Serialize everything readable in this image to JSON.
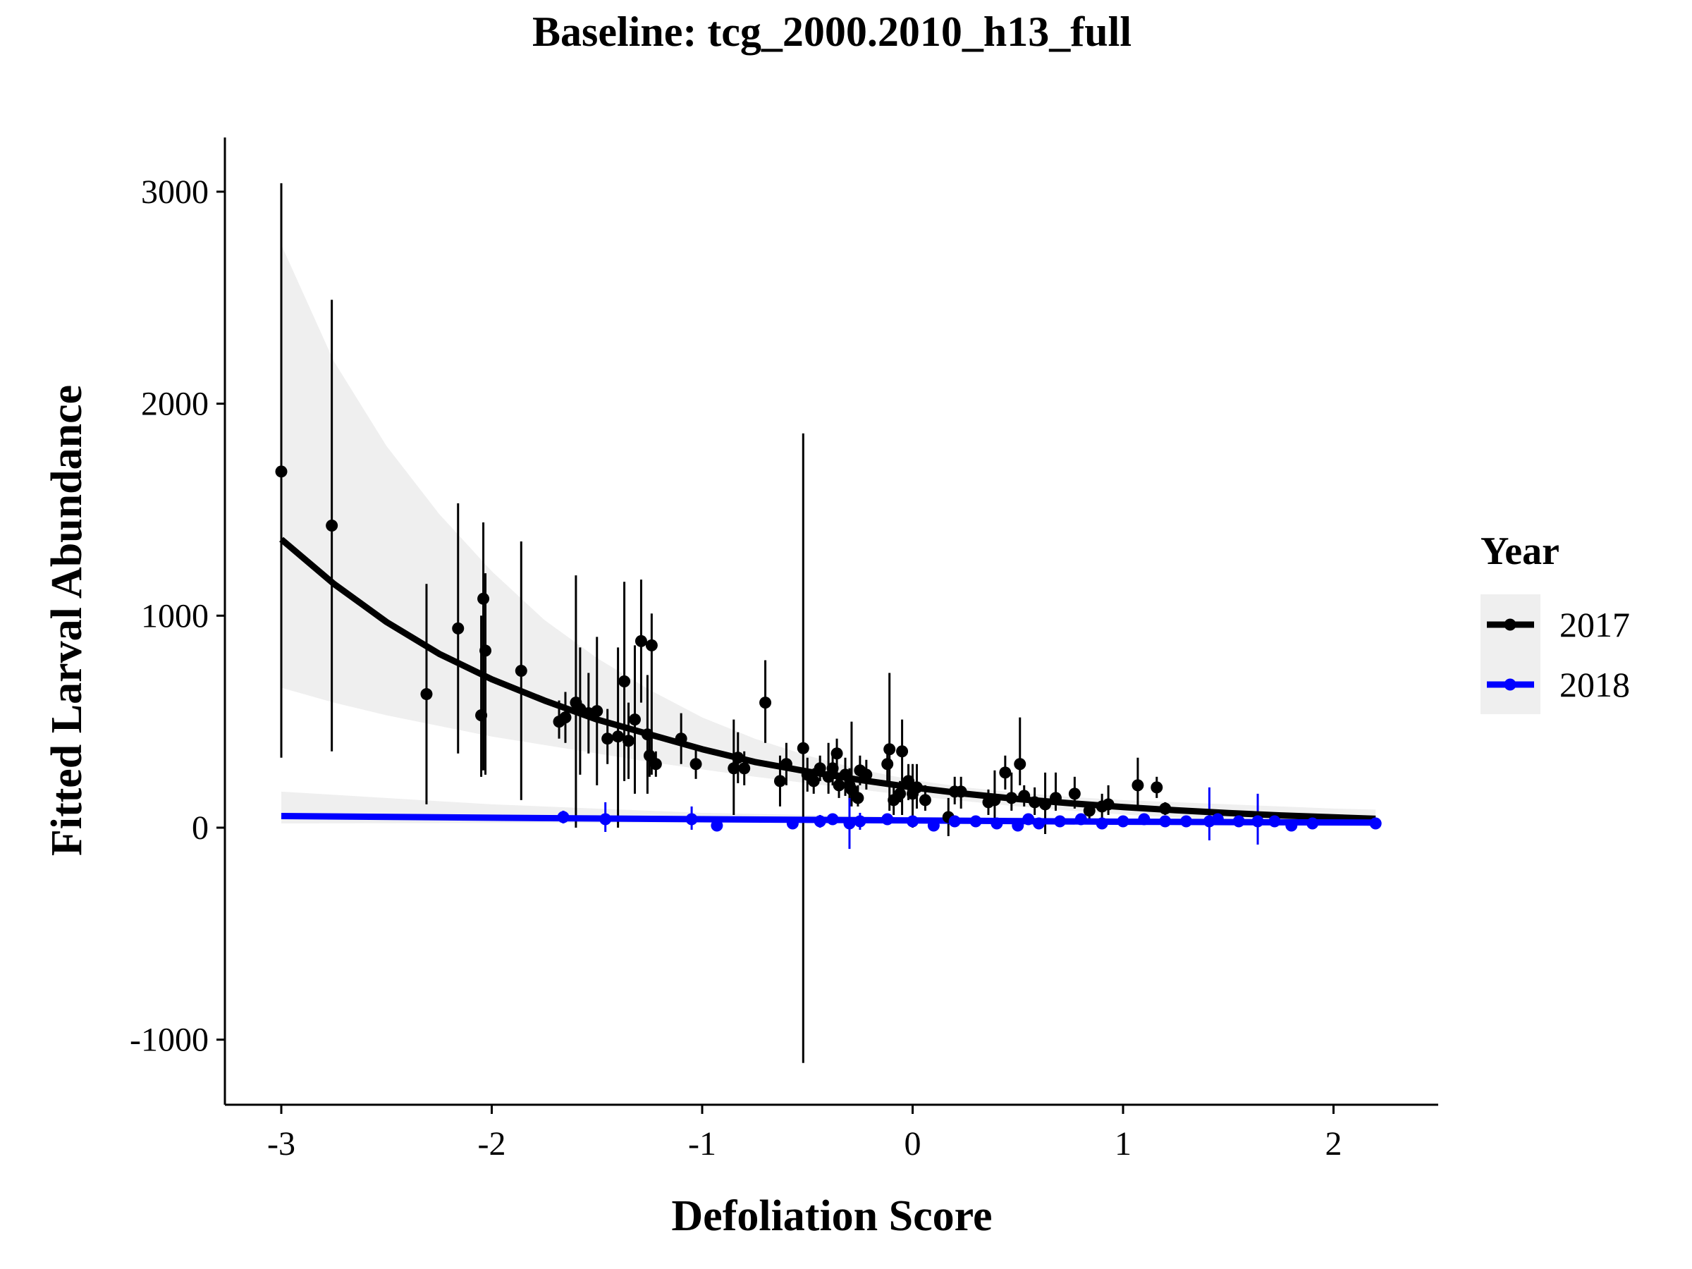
{
  "chart_data": {
    "type": "scatter",
    "title": "Baseline: tcg_2000.2010_h13_full",
    "xlabel": "Defoliation Score",
    "ylabel": "Fitted Larval Abundance",
    "xlim": [
      -3.27,
      2.5
    ],
    "ylim": [
      -1300,
      3250
    ],
    "x_ticks": [
      -3,
      -2,
      -1,
      0,
      1,
      2
    ],
    "x_tick_labels": [
      "-3",
      "-2",
      "-1",
      "0",
      "1",
      "2"
    ],
    "y_ticks": [
      -1000,
      0,
      1000,
      2000,
      3000
    ],
    "y_tick_labels": [
      "-1000",
      "0",
      "1000",
      "2000",
      "3000"
    ],
    "grid": false,
    "legend": {
      "title": "Year",
      "position": "right",
      "entries": [
        "2017",
        "2018"
      ]
    },
    "series": [
      {
        "name": "2017",
        "color": "#000000",
        "ribbon_color": "#efefef",
        "fit": {
          "x": [
            -3.0,
            -2.75,
            -2.5,
            -2.25,
            -2.0,
            -1.75,
            -1.5,
            -1.25,
            -1.0,
            -0.75,
            -0.5,
            -0.25,
            0.0,
            0.25,
            0.5,
            0.75,
            1.0,
            1.25,
            1.5,
            1.75,
            2.0,
            2.2
          ],
          "y": [
            1360,
            1150,
            970,
            820,
            700,
            600,
            510,
            440,
            370,
            310,
            265,
            225,
            190,
            160,
            135,
            115,
            97,
            82,
            69,
            58,
            49,
            42
          ],
          "lower": [
            660,
            590,
            530,
            480,
            430,
            390,
            350,
            310,
            275,
            240,
            210,
            180,
            150,
            125,
            100,
            80,
            62,
            48,
            35,
            25,
            15,
            8
          ],
          "upper": [
            2750,
            2200,
            1800,
            1480,
            1210,
            980,
            800,
            650,
            520,
            420,
            340,
            275,
            225,
            190,
            165,
            145,
            130,
            120,
            110,
            100,
            90,
            85
          ]
        },
        "points": [
          [
            -3.0,
            1680,
            330,
            3040
          ],
          [
            -2.76,
            1425,
            360,
            2490
          ],
          [
            -2.31,
            630,
            110,
            1150
          ],
          [
            -2.16,
            940,
            350,
            1530
          ],
          [
            -2.04,
            1080,
            270,
            1440
          ],
          [
            -2.03,
            835,
            250,
            1200
          ],
          [
            -2.05,
            530,
            240,
            1000
          ],
          [
            -1.86,
            740,
            130,
            1350
          ],
          [
            -1.68,
            500,
            420,
            600
          ],
          [
            -1.65,
            520,
            400,
            640
          ],
          [
            -1.6,
            590,
            0,
            1190
          ],
          [
            -1.58,
            560,
            250,
            850
          ],
          [
            -1.54,
            540,
            350,
            730
          ],
          [
            -1.5,
            550,
            200,
            900
          ],
          [
            -1.45,
            420,
            300,
            560
          ],
          [
            -1.4,
            430,
            0,
            850
          ],
          [
            -1.37,
            690,
            220,
            1160
          ],
          [
            -1.35,
            410,
            230,
            590
          ],
          [
            -1.32,
            510,
            160,
            860
          ],
          [
            -1.29,
            880,
            590,
            1170
          ],
          [
            -1.26,
            440,
            160,
            720
          ],
          [
            -1.25,
            340,
            240,
            440
          ],
          [
            -1.24,
            860,
            250,
            1010
          ],
          [
            -1.22,
            300,
            240,
            360
          ],
          [
            -1.1,
            420,
            300,
            540
          ],
          [
            -1.03,
            300,
            230,
            370
          ],
          [
            -0.85,
            280,
            60,
            510
          ],
          [
            -0.83,
            330,
            210,
            450
          ],
          [
            -0.8,
            280,
            200,
            360
          ],
          [
            -0.7,
            590,
            400,
            790
          ],
          [
            -0.63,
            220,
            100,
            340
          ],
          [
            -0.6,
            300,
            200,
            400
          ],
          [
            -0.52,
            375,
            -1110,
            1860
          ],
          [
            -0.5,
            250,
            170,
            330
          ],
          [
            -0.47,
            220,
            160,
            280
          ],
          [
            -0.44,
            280,
            220,
            340
          ],
          [
            -0.4,
            240,
            160,
            400
          ],
          [
            -0.38,
            280,
            200,
            360
          ],
          [
            -0.36,
            350,
            220,
            420
          ],
          [
            -0.35,
            200,
            140,
            260
          ],
          [
            -0.32,
            250,
            150,
            330
          ],
          [
            -0.3,
            200,
            130,
            280
          ],
          [
            -0.29,
            180,
            100,
            500
          ],
          [
            -0.26,
            140,
            100,
            200
          ],
          [
            -0.25,
            270,
            200,
            340
          ],
          [
            -0.22,
            250,
            180,
            320
          ],
          [
            -0.12,
            300,
            220,
            380
          ],
          [
            -0.11,
            370,
            80,
            730
          ],
          [
            -0.09,
            130,
            60,
            200
          ],
          [
            -0.06,
            160,
            120,
            220
          ],
          [
            -0.05,
            360,
            60,
            510
          ],
          [
            -0.02,
            220,
            130,
            300
          ],
          [
            0.0,
            160,
            0,
            300
          ],
          [
            0.02,
            190,
            90,
            300
          ],
          [
            0.06,
            130,
            80,
            200
          ],
          [
            0.17,
            50,
            -40,
            140
          ],
          [
            0.2,
            170,
            110,
            240
          ],
          [
            0.23,
            170,
            90,
            240
          ],
          [
            0.36,
            120,
            60,
            180
          ],
          [
            0.39,
            130,
            40,
            270
          ],
          [
            0.44,
            260,
            180,
            340
          ],
          [
            0.47,
            140,
            80,
            260
          ],
          [
            0.51,
            300,
            200,
            520
          ],
          [
            0.53,
            150,
            100,
            200
          ],
          [
            0.58,
            120,
            60,
            190
          ],
          [
            0.63,
            110,
            -30,
            260
          ],
          [
            0.68,
            140,
            80,
            260
          ],
          [
            0.77,
            160,
            90,
            240
          ],
          [
            0.84,
            80,
            40,
            120
          ],
          [
            0.9,
            100,
            40,
            160
          ],
          [
            0.93,
            110,
            60,
            200
          ],
          [
            1.07,
            200,
            100,
            330
          ],
          [
            1.16,
            190,
            140,
            240
          ],
          [
            1.2,
            90,
            60,
            120
          ]
        ]
      },
      {
        "name": "2018",
        "color": "#0000ff",
        "ribbon_color": "#efefef",
        "fit": {
          "x": [
            -3.0,
            -2.0,
            -1.0,
            0.0,
            1.0,
            2.2
          ],
          "y": [
            55,
            47,
            40,
            34,
            28,
            24
          ],
          "lower": [
            20,
            22,
            24,
            20,
            14,
            10
          ],
          "upper": [
            170,
            110,
            70,
            50,
            45,
            40
          ]
        },
        "points": [
          [
            -1.66,
            50,
            20,
            80
          ],
          [
            -1.46,
            40,
            -20,
            120
          ],
          [
            -1.05,
            40,
            -10,
            100
          ],
          [
            -0.93,
            10,
            0,
            20
          ],
          [
            -0.57,
            20,
            10,
            30
          ],
          [
            -0.44,
            30,
            0,
            60
          ],
          [
            -0.38,
            40,
            20,
            60
          ],
          [
            -0.3,
            20,
            -100,
            140
          ],
          [
            -0.25,
            30,
            -10,
            70
          ],
          [
            -0.12,
            40,
            20,
            60
          ],
          [
            0.0,
            30,
            10,
            50
          ],
          [
            0.1,
            10,
            0,
            20
          ],
          [
            0.2,
            30,
            20,
            40
          ],
          [
            0.3,
            30,
            10,
            50
          ],
          [
            0.4,
            20,
            10,
            30
          ],
          [
            0.5,
            10,
            0,
            20
          ],
          [
            0.55,
            40,
            20,
            60
          ],
          [
            0.6,
            20,
            10,
            30
          ],
          [
            0.7,
            30,
            10,
            50
          ],
          [
            0.8,
            40,
            20,
            60
          ],
          [
            0.9,
            20,
            10,
            30
          ],
          [
            1.0,
            30,
            10,
            50
          ],
          [
            1.1,
            40,
            20,
            60
          ],
          [
            1.2,
            30,
            10,
            50
          ],
          [
            1.3,
            30,
            10,
            50
          ],
          [
            1.41,
            30,
            -60,
            190
          ],
          [
            1.45,
            40,
            20,
            60
          ],
          [
            1.55,
            30,
            10,
            50
          ],
          [
            1.64,
            30,
            -80,
            160
          ],
          [
            1.72,
            30,
            10,
            50
          ],
          [
            1.8,
            10,
            0,
            20
          ],
          [
            1.9,
            20,
            10,
            30
          ],
          [
            2.2,
            20,
            10,
            30
          ]
        ]
      }
    ]
  }
}
